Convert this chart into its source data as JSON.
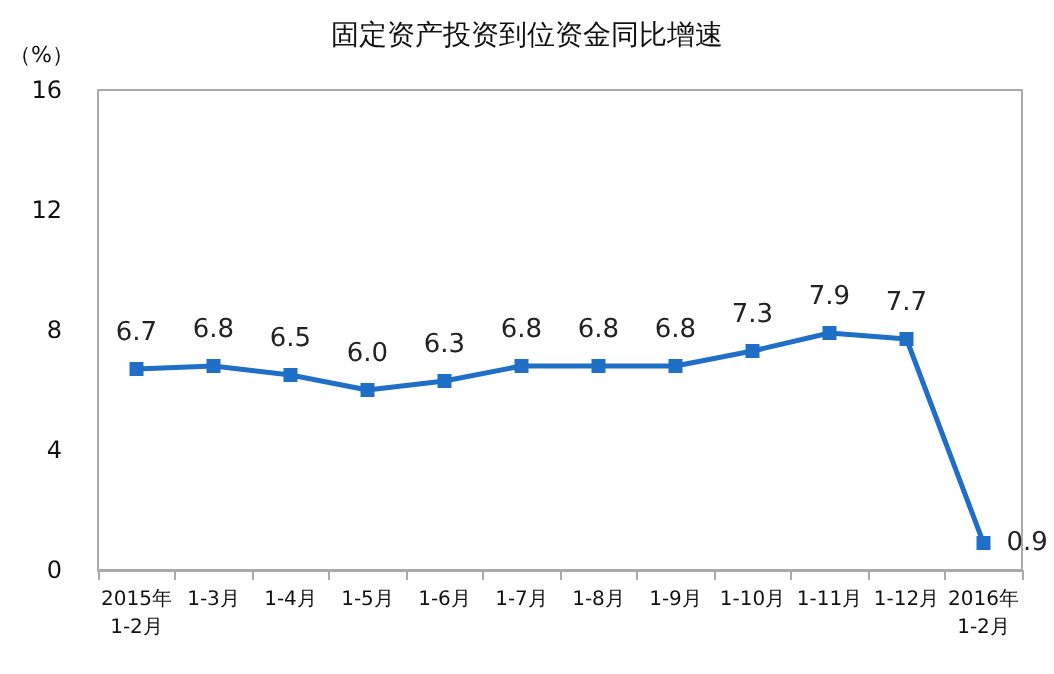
{
  "chart_data": {
    "type": "line",
    "title": "固定资产投资到位资金同比增速",
    "ylabel": "（%）",
    "categories": [
      "2015年\n1-2月",
      "1-3月",
      "1-4月",
      "1-5月",
      "1-6月",
      "1-7月",
      "1-8月",
      "1-9月",
      "1-10月",
      "1-11月",
      "1-12月",
      "2016年\n1-2月"
    ],
    "series": [
      {
        "color": "#1f6fc6",
        "values": [
          6.7,
          6.8,
          6.5,
          6.0,
          6.3,
          6.8,
          6.8,
          6.8,
          7.3,
          7.9,
          7.7,
          0.9
        ],
        "value_labels": [
          "6.7",
          "6.8",
          "6.5",
          "6.0",
          "6.3",
          "6.8",
          "6.8",
          "6.8",
          "7.3",
          "7.9",
          "7.7",
          "0.9"
        ]
      }
    ],
    "ylim": [
      0,
      16
    ],
    "yticks": [
      0,
      4,
      8,
      12,
      16
    ],
    "grid": false,
    "marker": "square",
    "line_style": "solid"
  }
}
